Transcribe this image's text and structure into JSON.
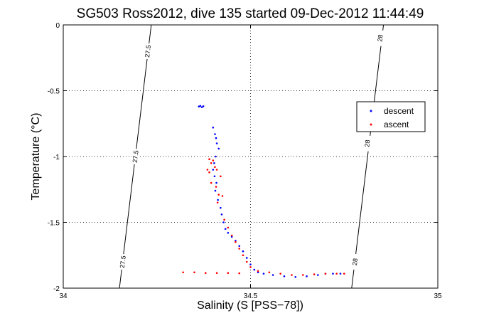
{
  "chart_data": {
    "type": "scatter",
    "title": "SG503 Ross2012, dive 135 started 09-Dec-2012 11:44:49",
    "xlabel": "Salinity (S [PSS−78])",
    "ylabel": "Temperature (°C)",
    "xlim": [
      34,
      35
    ],
    "ylim": [
      -2,
      0
    ],
    "x_ticks": [
      34,
      34.5,
      35
    ],
    "x_tick_labels": [
      "34",
      "34.5",
      "35"
    ],
    "y_ticks": [
      0,
      -0.5,
      -1,
      -1.5,
      -2
    ],
    "y_tick_labels": [
      "0",
      "-0.5",
      "-1",
      "-1.5",
      "-2"
    ],
    "grid": true,
    "legend_position": "right",
    "density_contours": [
      {
        "label": "27.5",
        "line": [
          [
            34.15,
            -2
          ],
          [
            34.235,
            0
          ]
        ],
        "labels_at": [
          [
            34.159,
            -1.8
          ],
          [
            34.193,
            -1.0
          ],
          [
            34.226,
            -0.2
          ]
        ]
      },
      {
        "label": "28",
        "line": [
          [
            34.77,
            -2
          ],
          [
            34.855,
            0
          ]
        ],
        "labels_at": [
          [
            34.779,
            -1.8
          ],
          [
            34.812,
            -0.9
          ],
          [
            34.846,
            -0.1
          ]
        ]
      }
    ],
    "series": [
      {
        "name": "descent",
        "color": "#0000ff",
        "marker": "point",
        "points": [
          [
            34.362,
            -0.62
          ],
          [
            34.366,
            -0.615
          ],
          [
            34.37,
            -0.625
          ],
          [
            34.374,
            -0.618
          ],
          [
            34.4,
            -0.78
          ],
          [
            34.405,
            -0.83
          ],
          [
            34.408,
            -0.86
          ],
          [
            34.41,
            -0.9
          ],
          [
            34.415,
            -0.94
          ],
          [
            34.407,
            -1.0
          ],
          [
            34.403,
            -1.05
          ],
          [
            34.4,
            -1.1
          ],
          [
            34.404,
            -1.15
          ],
          [
            34.409,
            -1.2
          ],
          [
            34.406,
            -1.26
          ],
          [
            34.413,
            -1.33
          ],
          [
            34.42,
            -1.39
          ],
          [
            34.423,
            -1.44
          ],
          [
            34.428,
            -1.5
          ],
          [
            34.433,
            -1.55
          ],
          [
            34.44,
            -1.58
          ],
          [
            34.45,
            -1.61
          ],
          [
            34.46,
            -1.64
          ],
          [
            34.47,
            -1.68
          ],
          [
            34.48,
            -1.72
          ],
          [
            34.49,
            -1.77
          ],
          [
            34.5,
            -1.82
          ],
          [
            34.51,
            -1.86
          ],
          [
            34.52,
            -1.88
          ],
          [
            34.535,
            -1.89
          ],
          [
            34.56,
            -1.9
          ],
          [
            34.59,
            -1.91
          ],
          [
            34.62,
            -1.915
          ],
          [
            34.65,
            -1.91
          ],
          [
            34.68,
            -1.9
          ],
          [
            34.7,
            -1.89
          ],
          [
            34.72,
            -1.89
          ],
          [
            34.74,
            -1.89
          ]
        ]
      },
      {
        "name": "ascent",
        "color": "#ff0000",
        "marker": "point",
        "points": [
          [
            34.39,
            -1.02
          ],
          [
            34.395,
            -1.05
          ],
          [
            34.4,
            -1.03
          ],
          [
            34.405,
            -1.08
          ],
          [
            34.385,
            -1.1
          ],
          [
            34.39,
            -1.12
          ],
          [
            34.41,
            -1.1
          ],
          [
            34.42,
            -1.15
          ],
          [
            34.395,
            -1.2
          ],
          [
            34.408,
            -1.23
          ],
          [
            34.415,
            -1.29
          ],
          [
            34.425,
            -1.3
          ],
          [
            34.412,
            -1.35
          ],
          [
            34.43,
            -1.48
          ],
          [
            34.44,
            -1.54
          ],
          [
            34.45,
            -1.6
          ],
          [
            34.46,
            -1.65
          ],
          [
            34.47,
            -1.7
          ],
          [
            34.48,
            -1.75
          ],
          [
            34.49,
            -1.8
          ],
          [
            34.5,
            -1.84
          ],
          [
            34.52,
            -1.87
          ],
          [
            34.55,
            -1.88
          ],
          [
            34.58,
            -1.89
          ],
          [
            34.61,
            -1.9
          ],
          [
            34.64,
            -1.9
          ],
          [
            34.67,
            -1.895
          ],
          [
            34.7,
            -1.89
          ],
          [
            34.73,
            -1.89
          ],
          [
            34.75,
            -1.89
          ],
          [
            34.32,
            -1.88
          ],
          [
            34.35,
            -1.88
          ],
          [
            34.38,
            -1.885
          ],
          [
            34.41,
            -1.885
          ],
          [
            34.44,
            -1.885
          ],
          [
            34.47,
            -1.887
          ]
        ]
      }
    ]
  }
}
